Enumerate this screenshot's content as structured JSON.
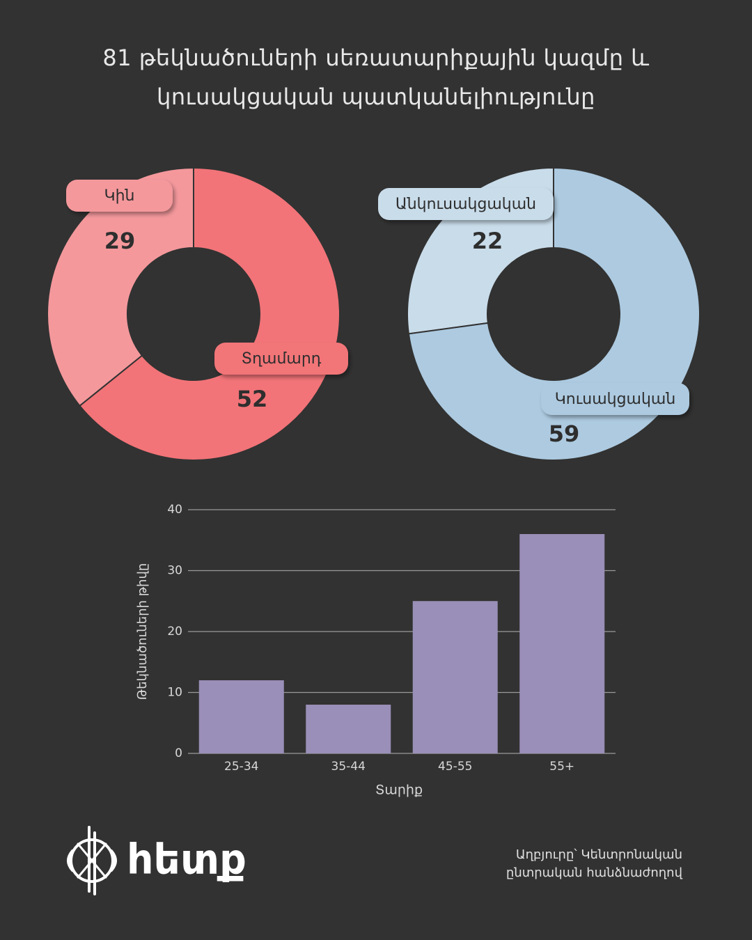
{
  "title": "81 թեկնածուների սեռատարիքային կազմը և կուսակցական պատկանելիությունը",
  "chart_data": [
    {
      "type": "donut",
      "categories": [
        "Կին",
        "Տղամարդ"
      ],
      "values": [
        29,
        52
      ],
      "colors": [
        "#f4989c",
        "#f27478"
      ]
    },
    {
      "type": "donut",
      "categories": [
        "Անկուսակցական",
        "Կուսակցական"
      ],
      "values": [
        22,
        59
      ],
      "colors": [
        "#c9dcea",
        "#adcae0"
      ]
    },
    {
      "type": "bar",
      "categories": [
        "25-34",
        "35-44",
        "45-55",
        "55+"
      ],
      "values": [
        12,
        8,
        25,
        36
      ],
      "color": "#9a8fb8",
      "ylim": [
        0,
        40
      ],
      "yticks": [
        0,
        10,
        20,
        30,
        40
      ],
      "xlabel": "Տարիք",
      "ylabel": "Թեկնածուների թիվը",
      "grid": true
    }
  ],
  "logo": "հետք",
  "source": "Աղբյուրը՝ Կենտրոնական ընտրական հանձնաժողով"
}
